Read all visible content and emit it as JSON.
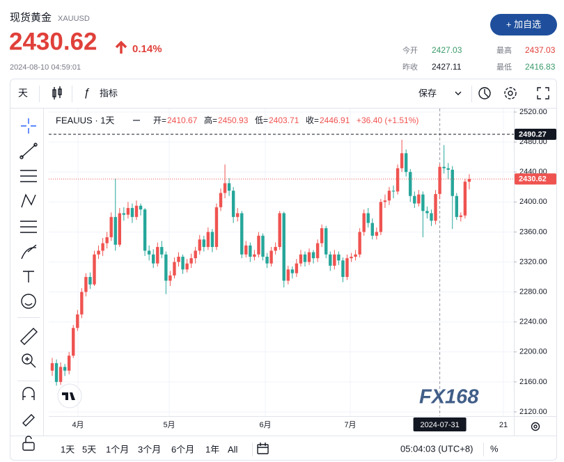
{
  "header": {
    "title": "现货黄金",
    "symbol": "XAUUSD",
    "price": "2430.62",
    "change": "0.14%",
    "time": "2024-08-10 04:59:01",
    "button": "+ 加自选",
    "stats": [
      {
        "label": "今开",
        "value": "2427.03"
      },
      {
        "label": "最高",
        "value": "2437.03"
      },
      {
        "label": "昨收",
        "value": "2427.11"
      },
      {
        "label": "最低",
        "value": "2416.83"
      }
    ]
  },
  "toolbar": {
    "interval": "天",
    "indicators": "指标",
    "save": "保存"
  },
  "chart_data": {
    "type": "candlestick",
    "symbol_label": "FEAUUS · 1天",
    "ohlc_labels": [
      "开=",
      "高=",
      "低=",
      "收="
    ],
    "change_label": "+36.40 (+1.51%)",
    "up_color": "#ef5350",
    "down_color": "#26a69a",
    "ylim": [
      2120,
      2520
    ],
    "yticks": [
      {
        "value": 2520,
        "label": "2520.00"
      },
      {
        "value": 2480,
        "label": "2480.00"
      },
      {
        "value": 2440,
        "label": "2440.00"
      },
      {
        "value": 2400,
        "label": "2400.00"
      },
      {
        "value": 2360,
        "label": "2360.00"
      },
      {
        "value": 2320,
        "label": "2320.00"
      },
      {
        "value": 2280,
        "label": "2280.00"
      },
      {
        "value": 2240,
        "label": "2240.00"
      },
      {
        "value": 2200,
        "label": "2200.00"
      },
      {
        "value": 2160,
        "label": "2160.00"
      },
      {
        "value": 2120,
        "label": "2120.00"
      }
    ],
    "grid": true,
    "x_tick_labels": [
      "4月",
      "5月",
      "6月",
      "7月",
      "21"
    ],
    "crosshair_date": "2024-07-31",
    "price_lines": [
      {
        "value": 2490.27,
        "color": "#131722"
      },
      {
        "value": 2430.62,
        "color": "#ef5350"
      }
    ],
    "watermark": "FX168",
    "candles": [
      [
        2175,
        2192,
        2168,
        2185
      ],
      [
        2185,
        2190,
        2155,
        2160
      ],
      [
        2160,
        2186,
        2156,
        2180
      ],
      [
        2180,
        2184,
        2168,
        2175
      ],
      [
        2175,
        2200,
        2170,
        2195
      ],
      [
        2195,
        2236,
        2192,
        2232
      ],
      [
        2232,
        2256,
        2228,
        2250
      ],
      [
        2250,
        2285,
        2245,
        2280
      ],
      [
        2280,
        2305,
        2274,
        2300
      ],
      [
        2300,
        2306,
        2284,
        2290
      ],
      [
        2290,
        2335,
        2288,
        2330
      ],
      [
        2330,
        2342,
        2324,
        2335
      ],
      [
        2335,
        2352,
        2328,
        2345
      ],
      [
        2345,
        2360,
        2338,
        2353
      ],
      [
        2353,
        2386,
        2348,
        2380
      ],
      [
        2380,
        2431,
        2335,
        2343
      ],
      [
        2343,
        2392,
        2340,
        2385
      ],
      [
        2385,
        2393,
        2375,
        2383
      ],
      [
        2383,
        2400,
        2378,
        2392
      ],
      [
        2392,
        2398,
        2372,
        2380
      ],
      [
        2380,
        2402,
        2376,
        2395
      ],
      [
        2395,
        2398,
        2382,
        2390
      ],
      [
        2390,
        2392,
        2328,
        2335
      ],
      [
        2335,
        2342,
        2322,
        2330
      ],
      [
        2330,
        2337,
        2312,
        2318
      ],
      [
        2318,
        2346,
        2314,
        2340
      ],
      [
        2340,
        2348,
        2325,
        2330
      ],
      [
        2330,
        2334,
        2277,
        2295
      ],
      [
        2295,
        2308,
        2288,
        2302
      ],
      [
        2302,
        2326,
        2298,
        2320
      ],
      [
        2320,
        2333,
        2314,
        2327
      ],
      [
        2327,
        2330,
        2304,
        2310
      ],
      [
        2310,
        2324,
        2306,
        2318
      ],
      [
        2318,
        2331,
        2312,
        2325
      ],
      [
        2325,
        2340,
        2318,
        2335
      ],
      [
        2335,
        2356,
        2330,
        2350
      ],
      [
        2350,
        2355,
        2334,
        2340
      ],
      [
        2340,
        2366,
        2336,
        2360
      ],
      [
        2360,
        2364,
        2333,
        2340
      ],
      [
        2340,
        2398,
        2336,
        2393
      ],
      [
        2393,
        2418,
        2388,
        2412
      ],
      [
        2412,
        2450,
        2405,
        2425
      ],
      [
        2425,
        2432,
        2408,
        2415
      ],
      [
        2415,
        2420,
        2372,
        2380
      ],
      [
        2380,
        2392,
        2374,
        2385
      ],
      [
        2385,
        2388,
        2325,
        2330
      ],
      [
        2330,
        2348,
        2326,
        2342
      ],
      [
        2342,
        2346,
        2320,
        2327
      ],
      [
        2327,
        2336,
        2322,
        2330
      ],
      [
        2330,
        2360,
        2326,
        2355
      ],
      [
        2355,
        2358,
        2322,
        2327
      ],
      [
        2327,
        2332,
        2312,
        2318
      ],
      [
        2318,
        2340,
        2314,
        2335
      ],
      [
        2335,
        2346,
        2330,
        2340
      ],
      [
        2340,
        2388,
        2336,
        2385
      ],
      [
        2385,
        2387,
        2286,
        2295
      ],
      [
        2295,
        2315,
        2290,
        2310
      ],
      [
        2310,
        2314,
        2298,
        2305
      ],
      [
        2305,
        2324,
        2300,
        2318
      ],
      [
        2318,
        2336,
        2314,
        2330
      ],
      [
        2330,
        2334,
        2314,
        2320
      ],
      [
        2320,
        2338,
        2316,
        2333
      ],
      [
        2333,
        2336,
        2318,
        2325
      ],
      [
        2325,
        2350,
        2320,
        2345
      ],
      [
        2345,
        2370,
        2340,
        2365
      ],
      [
        2365,
        2368,
        2325,
        2330
      ],
      [
        2330,
        2334,
        2308,
        2315
      ],
      [
        2315,
        2336,
        2310,
        2330
      ],
      [
        2330,
        2334,
        2316,
        2322
      ],
      [
        2322,
        2326,
        2293,
        2300
      ],
      [
        2300,
        2330,
        2296,
        2325
      ],
      [
        2325,
        2332,
        2320,
        2327
      ],
      [
        2327,
        2336,
        2322,
        2330
      ],
      [
        2330,
        2365,
        2326,
        2360
      ],
      [
        2360,
        2390,
        2355,
        2385
      ],
      [
        2385,
        2392,
        2366,
        2372
      ],
      [
        2372,
        2378,
        2350,
        2355
      ],
      [
        2355,
        2366,
        2350,
        2360
      ],
      [
        2360,
        2404,
        2356,
        2400
      ],
      [
        2400,
        2410,
        2392,
        2402
      ],
      [
        2402,
        2420,
        2396,
        2415
      ],
      [
        2415,
        2422,
        2405,
        2414
      ],
      [
        2414,
        2450,
        2410,
        2445
      ],
      [
        2445,
        2483,
        2440,
        2465
      ],
      [
        2465,
        2470,
        2434,
        2440
      ],
      [
        2440,
        2444,
        2400,
        2408
      ],
      [
        2408,
        2414,
        2392,
        2398
      ],
      [
        2398,
        2416,
        2394,
        2410
      ],
      [
        2410,
        2414,
        2353,
        2388
      ],
      [
        2388,
        2394,
        2378,
        2385
      ],
      [
        2385,
        2390,
        2368,
        2375
      ],
      [
        2375,
        2416,
        2370,
        2410.54
      ],
      [
        2410.67,
        2450.93,
        2403.71,
        2446.91
      ],
      [
        2446.91,
        2476,
        2438,
        2445
      ],
      [
        2445,
        2452,
        2430,
        2443
      ],
      [
        2443,
        2448,
        2364,
        2408
      ],
      [
        2408,
        2412,
        2376,
        2380
      ],
      [
        2380,
        2386,
        2374,
        2382
      ],
      [
        2382,
        2431,
        2378,
        2427.11
      ],
      [
        2427.03,
        2437.03,
        2416.83,
        2430.62
      ]
    ]
  },
  "bottom_bar": {
    "ranges": [
      "1天",
      "5天",
      "1个月",
      "3个月",
      "6个月",
      "1年",
      "All"
    ],
    "clock": "05:04:03 (UTC+8)",
    "percent": "%"
  }
}
